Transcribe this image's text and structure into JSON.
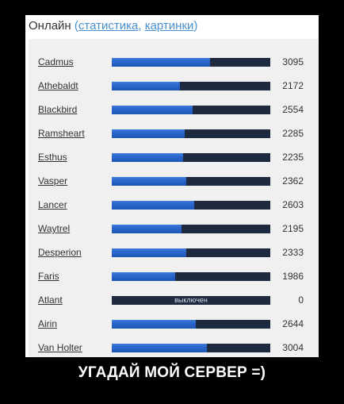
{
  "header": {
    "title": "Онлайн",
    "open_paren": "(",
    "link_stats": "статистика",
    "separator": ", ",
    "link_pictures": "картинки",
    "close_paren": ")"
  },
  "servers": [
    {
      "name": "Cadmus",
      "count": "3095",
      "fill_pct": 62
    },
    {
      "name": "Athebaldt",
      "count": "2172",
      "fill_pct": 43
    },
    {
      "name": "Blackbird",
      "count": "2554",
      "fill_pct": 51
    },
    {
      "name": "Ramsheart",
      "count": "2285",
      "fill_pct": 46
    },
    {
      "name": "Esthus",
      "count": "2235",
      "fill_pct": 45
    },
    {
      "name": "Vasper",
      "count": "2362",
      "fill_pct": 47
    },
    {
      "name": "Lancer",
      "count": "2603",
      "fill_pct": 52
    },
    {
      "name": "Waytrel",
      "count": "2195",
      "fill_pct": 44
    },
    {
      "name": "Desperion",
      "count": "2333",
      "fill_pct": 47
    },
    {
      "name": "Faris",
      "count": "1986",
      "fill_pct": 40
    },
    {
      "name": "Atlant",
      "count": "0",
      "fill_pct": 0,
      "status": "выключен"
    },
    {
      "name": "Airin",
      "count": "2644",
      "fill_pct": 53
    },
    {
      "name": "Van Holter",
      "count": "3004",
      "fill_pct": 60
    }
  ],
  "caption": "УГАДАЙ МОЙ СЕРВЕР =)"
}
